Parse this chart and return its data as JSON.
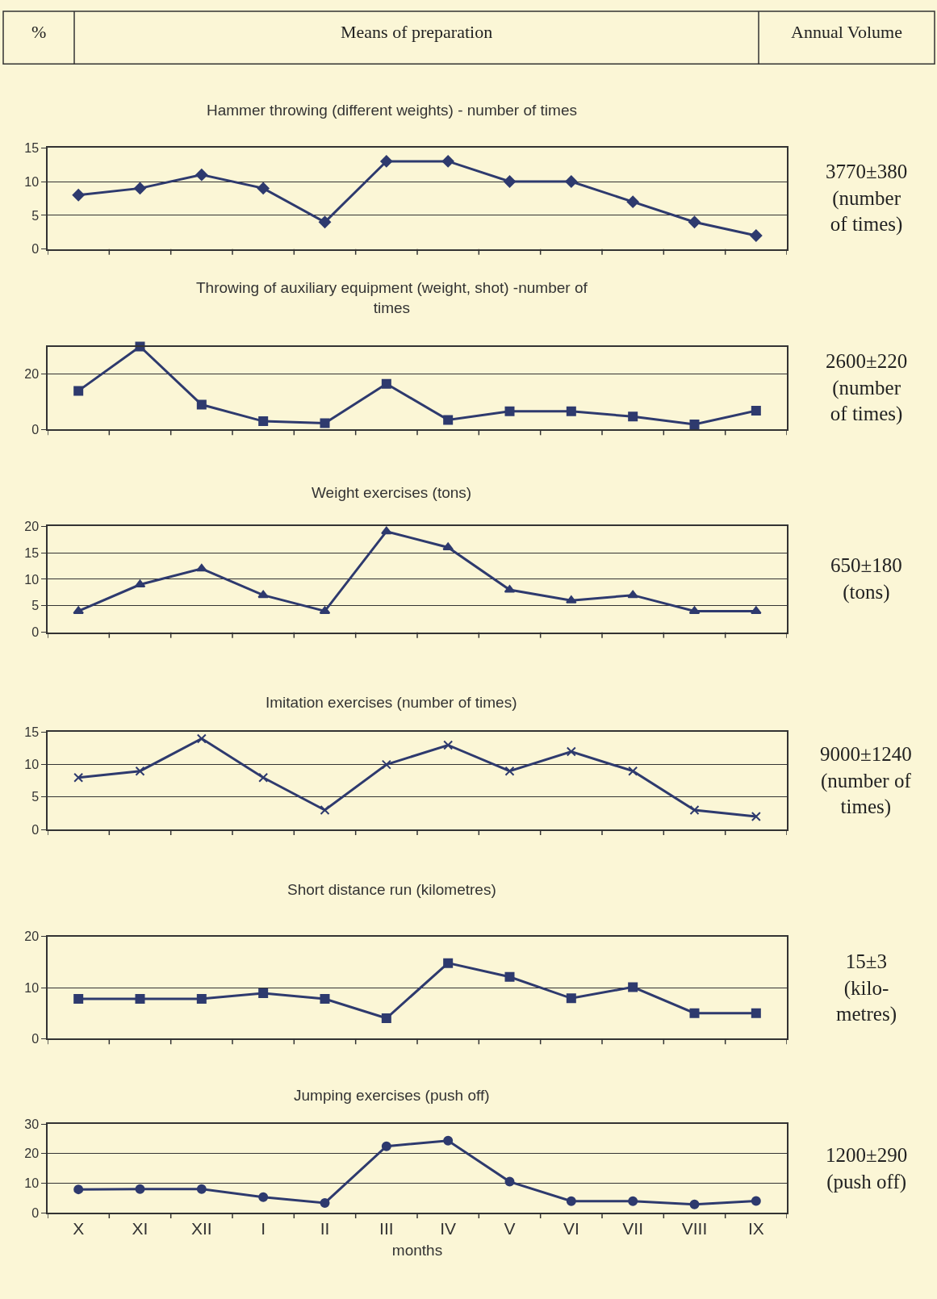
{
  "chart_data": [
    {
      "type": "line",
      "title": "Hammer throwing (different weights) - number of times",
      "categories": [
        null,
        null,
        null,
        null,
        null,
        null,
        null,
        null,
        null,
        null,
        null,
        null
      ],
      "series": [
        {
          "color": "#2e3a6e",
          "values": [
            8,
            9,
            11,
            9,
            4,
            13,
            13,
            10,
            10,
            7,
            4,
            2
          ]
        }
      ],
      "ylim": [
        0,
        15
      ],
      "yticks": [
        0,
        5,
        10,
        15
      ],
      "grid": "y",
      "marker": "diamond",
      "line_style": "solid",
      "annotations": [
        "%",
        "Means of preparation",
        "Annual Volume",
        "3770±380\n(number\nof times)"
      ]
    },
    {
      "type": "line",
      "title": "Throwing of auxiliary equipment (weight, shot) -number of times",
      "categories": [
        null,
        null,
        null,
        null,
        null,
        null,
        null,
        null,
        null,
        null,
        null,
        null
      ],
      "series": [
        {
          "color": "#2e3a6e",
          "values": [
            14,
            30,
            9,
            3,
            2.3,
            16.5,
            3.5,
            6.6,
            6.6,
            4.7,
            1.9,
            6.8
          ]
        }
      ],
      "ylim": [
        0,
        30
      ],
      "yticks": [
        0,
        20
      ],
      "grid": "y",
      "marker": "square",
      "line_style": "solid",
      "annotations": [
        "2600±220\n(number\nof times)"
      ]
    },
    {
      "type": "line",
      "title": "Weight exercises (tons)",
      "categories": [
        null,
        null,
        null,
        null,
        null,
        null,
        null,
        null,
        null,
        null,
        null,
        null
      ],
      "series": [
        {
          "color": "#2e3a6e",
          "values": [
            4,
            9,
            12,
            7,
            4,
            19,
            16,
            8,
            6,
            7,
            4,
            4
          ]
        }
      ],
      "ylim": [
        0,
        20
      ],
      "yticks": [
        0,
        5,
        10,
        15,
        20
      ],
      "grid": "y",
      "marker": "triangle",
      "line_style": "solid",
      "annotations": [
        "650±180\n(tons)"
      ]
    },
    {
      "type": "line",
      "title": "Imitation exercises (number of times)",
      "categories": [
        null,
        null,
        null,
        null,
        null,
        null,
        null,
        null,
        null,
        null,
        null,
        null
      ],
      "series": [
        {
          "color": "#2e3a6e",
          "values": [
            8,
            9,
            14,
            8,
            3,
            10,
            13,
            9,
            12,
            9,
            3,
            2
          ]
        }
      ],
      "ylim": [
        0,
        15
      ],
      "yticks": [
        0,
        5,
        10,
        15
      ],
      "grid": "y",
      "marker": "cross",
      "line_style": "solid",
      "annotations": [
        "9000±1240\n(number of\ntimes)"
      ]
    },
    {
      "type": "line",
      "title": "Short distance run (kilometres)",
      "categories": [
        null,
        null,
        null,
        null,
        null,
        null,
        null,
        null,
        null,
        null,
        null,
        null
      ],
      "series": [
        {
          "color": "#2e3a6e",
          "values": [
            7.8,
            7.8,
            7.8,
            8.9,
            7.8,
            4,
            14.8,
            12.1,
            7.9,
            10.1,
            5,
            5
          ]
        }
      ],
      "ylim": [
        0,
        20
      ],
      "yticks": [
        0,
        10,
        20
      ],
      "grid": "y",
      "marker": "square",
      "line_style": "solid",
      "annotations": [
        "15±3\n(kilo-\nmetres)"
      ]
    },
    {
      "type": "line",
      "title": "Jumping exercises (push off)",
      "xlabel": "months",
      "categories": [
        "X",
        "XI",
        "XII",
        "I",
        "II",
        "III",
        "IV",
        "V",
        "VI",
        "VII",
        "VIII",
        "IX"
      ],
      "series": [
        {
          "color": "#2e3a6e",
          "values": [
            7.9,
            8,
            8,
            5.3,
            3.3,
            22.5,
            24.4,
            10.5,
            3.9,
            3.9,
            2.8,
            4
          ]
        }
      ],
      "ylim": [
        0,
        30
      ],
      "yticks": [
        0,
        10,
        20,
        30
      ],
      "grid": "y",
      "marker": "circle",
      "line_style": "solid",
      "annotations": [
        "1200±290\n(push off)"
      ]
    }
  ]
}
